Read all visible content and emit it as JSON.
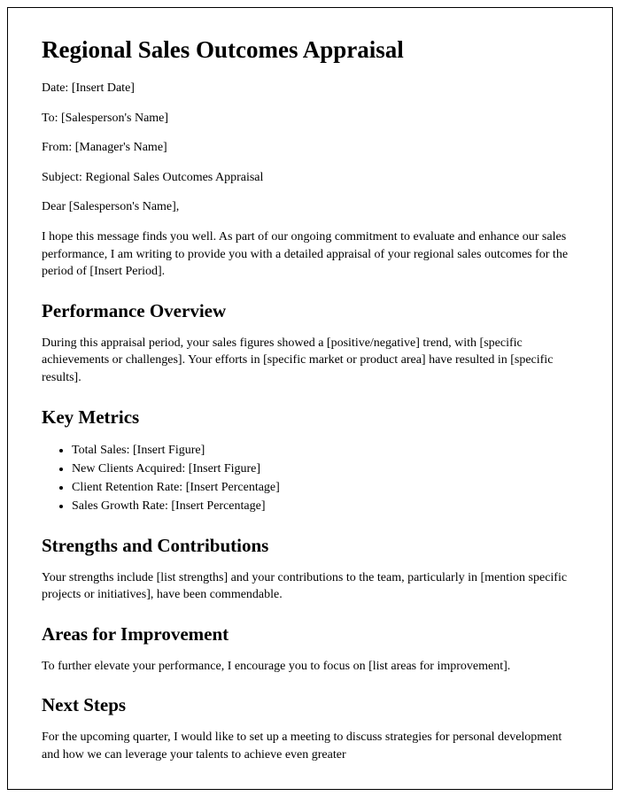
{
  "title": "Regional Sales Outcomes Appraisal",
  "meta": {
    "date": "Date: [Insert Date]",
    "to": "To: [Salesperson's Name]",
    "from": "From: [Manager's Name]",
    "subject": "Subject: Regional Sales Outcomes Appraisal"
  },
  "salutation": "Dear [Salesperson's Name],",
  "intro": "I hope this message finds you well. As part of our ongoing commitment to evaluate and enhance our sales performance, I am writing to provide you with a detailed appraisal of your regional sales outcomes for the period of [Insert Period].",
  "sections": {
    "performance": {
      "heading": "Performance Overview",
      "body": "During this appraisal period, your sales figures showed a [positive/negative] trend, with [specific achievements or challenges]. Your efforts in [specific market or product area] have resulted in [specific results]."
    },
    "metrics": {
      "heading": "Key Metrics",
      "items": [
        "Total Sales: [Insert Figure]",
        "New Clients Acquired: [Insert Figure]",
        "Client Retention Rate: [Insert Percentage]",
        "Sales Growth Rate: [Insert Percentage]"
      ]
    },
    "strengths": {
      "heading": "Strengths and Contributions",
      "body": "Your strengths include [list strengths] and your contributions to the team, particularly in [mention specific projects or initiatives], have been commendable."
    },
    "improvement": {
      "heading": "Areas for Improvement",
      "body": "To further elevate your performance, I encourage you to focus on [list areas for improvement]."
    },
    "nextsteps": {
      "heading": "Next Steps",
      "body": "For the upcoming quarter, I would like to set up a meeting to discuss strategies for personal development and how we can leverage your talents to achieve even greater"
    }
  }
}
